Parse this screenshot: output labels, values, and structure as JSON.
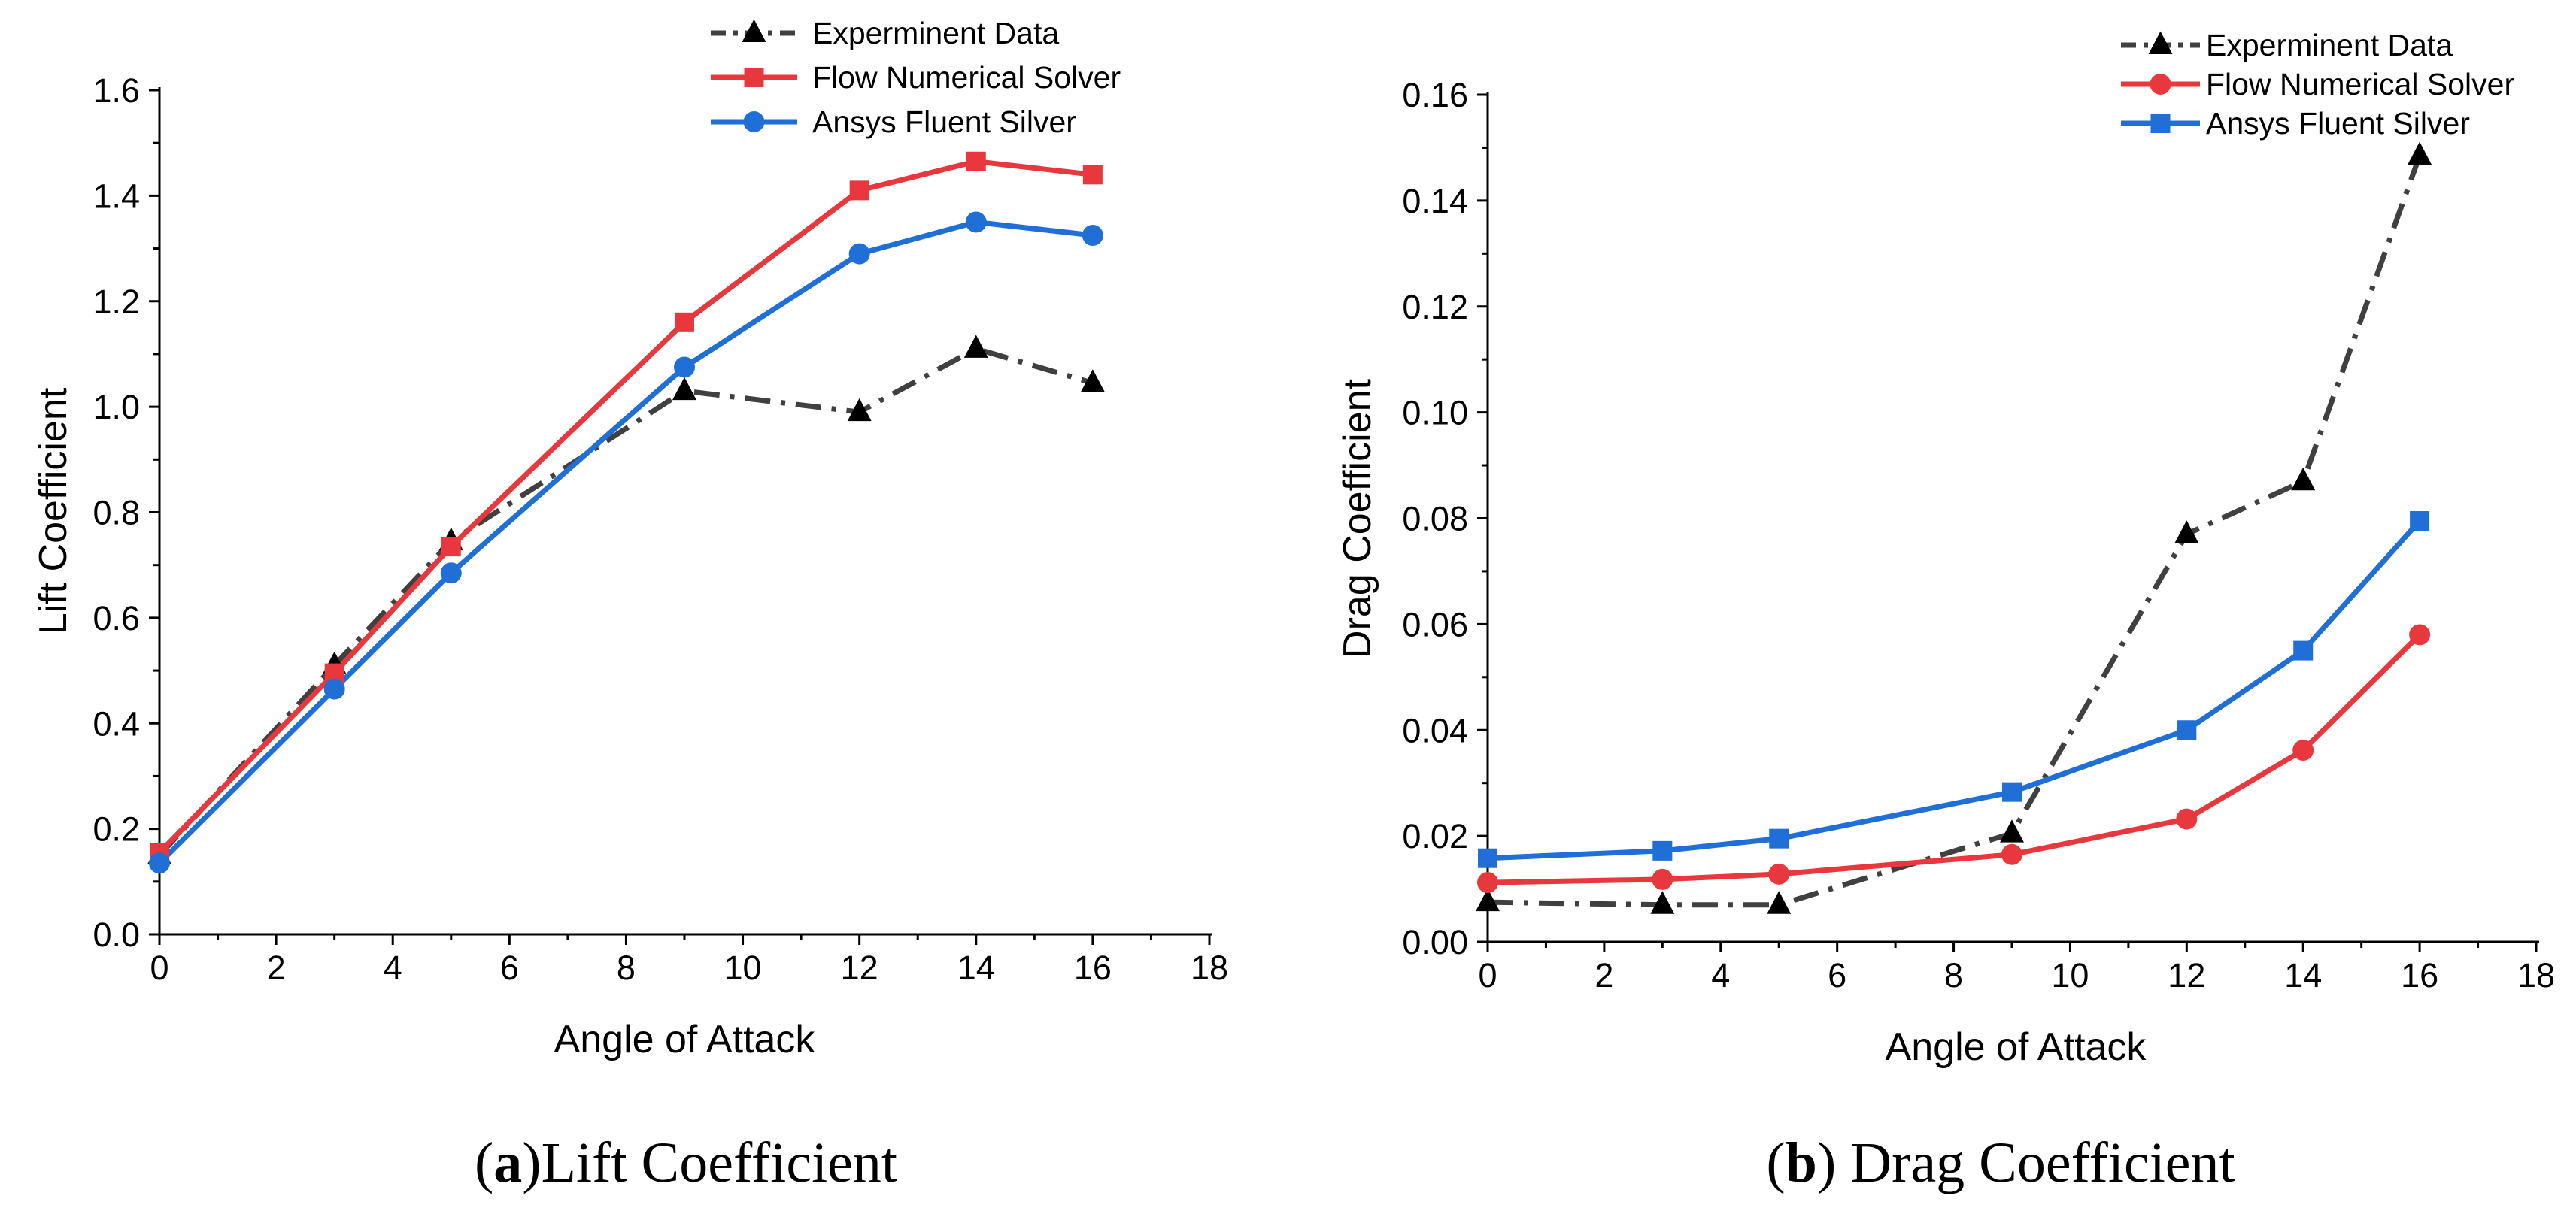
{
  "chart_data": [
    {
      "type": "line",
      "xlabel": "Angle of Attack",
      "ylabel": "Lift Coefficient",
      "xlim": [
        0,
        18
      ],
      "ylim": [
        0,
        1.6
      ],
      "xticks": [
        "0",
        "2",
        "4",
        "6",
        "8",
        "10",
        "12",
        "14",
        "16",
        "18"
      ],
      "yticks": [
        "0.0",
        "0.2",
        "0.4",
        "0.6",
        "0.8",
        "1.0",
        "1.2",
        "1.4",
        "1.6"
      ],
      "legend_position": "top-right",
      "caption": {
        "open": "(",
        "letter": "a",
        "rest": ")Lift Coefficient"
      },
      "series": [
        {
          "name": "Experminent Data",
          "color": "#404040",
          "marker": "triangle",
          "line": "dash-dot",
          "x": [
            0,
            3,
            5,
            9,
            12,
            14,
            16
          ],
          "y": [
            0.15,
            0.51,
            0.745,
            1.03,
            0.99,
            1.11,
            1.045
          ]
        },
        {
          "name": "Flow Numerical Solver",
          "color": "#e8383d",
          "marker": "square",
          "line": "solid",
          "x": [
            0,
            3,
            5,
            9,
            12,
            14,
            16
          ],
          "y": [
            0.155,
            0.495,
            0.735,
            1.16,
            1.41,
            1.465,
            1.44
          ]
        },
        {
          "name": "Ansys Fluent Silver",
          "color": "#1f6fd6",
          "marker": "circle",
          "line": "solid",
          "x": [
            0,
            3,
            5,
            9,
            12,
            14,
            16
          ],
          "y": [
            0.135,
            0.465,
            0.685,
            1.075,
            1.29,
            1.35,
            1.325
          ]
        }
      ]
    },
    {
      "type": "line",
      "xlabel": "Angle of Attack",
      "ylabel": "Drag Coefficient",
      "xlim": [
        0,
        18
      ],
      "ylim": [
        0,
        0.16
      ],
      "xticks": [
        "0",
        "2",
        "4",
        "6",
        "8",
        "10",
        "12",
        "14",
        "16",
        "18"
      ],
      "yticks": [
        "0.00",
        "0.02",
        "0.04",
        "0.06",
        "0.08",
        "0.10",
        "0.12",
        "0.14",
        "0.16"
      ],
      "legend_position": "top-right",
      "caption": {
        "open": "(",
        "letter": "b",
        "rest": ") Drag Coefficient"
      },
      "series": [
        {
          "name": "Experminent Data",
          "color": "#404040",
          "marker": "triangle",
          "line": "dash-dot",
          "x": [
            0,
            3,
            5,
            9,
            12,
            14,
            16
          ],
          "y": [
            0.0075,
            0.007,
            0.007,
            0.0205,
            0.077,
            0.087,
            0.1485
          ]
        },
        {
          "name": "Flow Numerical Solver",
          "color": "#e8383d",
          "marker": "circle",
          "line": "solid",
          "x": [
            0,
            3,
            5,
            9,
            12,
            14,
            16
          ],
          "y": [
            0.0112,
            0.0118,
            0.0128,
            0.0165,
            0.0232,
            0.0362,
            0.058
          ]
        },
        {
          "name": "Ansys Fluent Silver",
          "color": "#1f6fd6",
          "marker": "square",
          "line": "solid",
          "x": [
            0,
            3,
            5,
            9,
            12,
            14,
            16
          ],
          "y": [
            0.0158,
            0.0172,
            0.0195,
            0.0283,
            0.04,
            0.055,
            0.0795
          ]
        }
      ]
    }
  ]
}
